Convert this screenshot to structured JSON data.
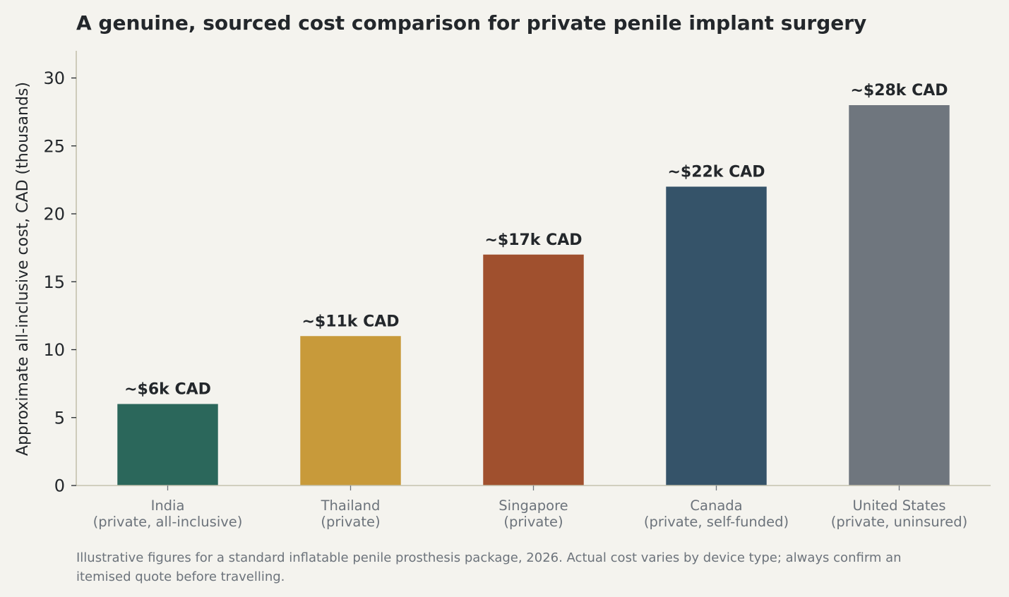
{
  "chart_data": {
    "type": "bar",
    "title": "A genuine, sourced cost comparison for private penile implant surgery",
    "ylabel": "Approximate all-inclusive cost, CAD (thousands)",
    "xlabel": "",
    "ylim": [
      0,
      32
    ],
    "yticks": [
      0,
      5,
      10,
      15,
      20,
      25,
      30
    ],
    "grid": false,
    "categories": [
      [
        "India",
        "(private, all-inclusive)"
      ],
      [
        "Thailand",
        "(private)"
      ],
      [
        "Singapore",
        "(private)"
      ],
      [
        "Canada",
        "(private, self-funded)"
      ],
      [
        "United States",
        "(private, uninsured)"
      ]
    ],
    "values": [
      6,
      11,
      17,
      22,
      28
    ],
    "data_labels": [
      "~$6k CAD",
      "~$11k CAD",
      "~$17k CAD",
      "~$22k CAD",
      "~$28k CAD"
    ],
    "colors": [
      "#2b675b",
      "#c89a3a",
      "#a0502e",
      "#355369",
      "#6f767e"
    ],
    "footnote": [
      "Illustrative figures for a standard inflatable penile prosthesis package, 2026. Actual cost varies by device type; always confirm an",
      "itemised quote before travelling."
    ]
  },
  "style": {
    "background": "#f4f3ee",
    "axis_color": "#c4c1ae",
    "text_color": "#23272b",
    "muted_text_color": "#6c737b"
  }
}
